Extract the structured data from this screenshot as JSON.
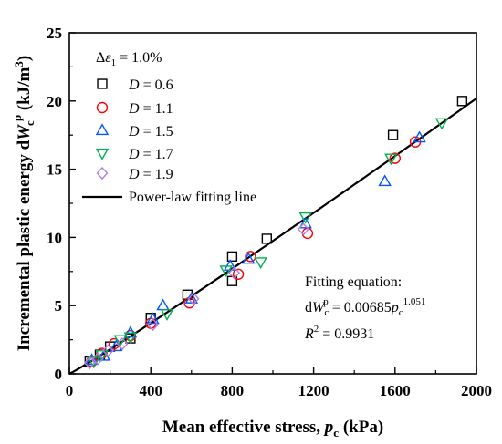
{
  "chart_data": {
    "type": "scatter",
    "title": "",
    "xlabel": "Mean effective stress, p_c (kPa)",
    "ylabel": "Incremental plastic energy dW_c^p (kJ/m^3)",
    "xlabel_parts": [
      "Mean effective stress, ",
      "p",
      "c",
      " (kPa)"
    ],
    "ylabel_parts": [
      "Incremental plastic energy d",
      "W",
      "c",
      "p",
      " (kJ/m",
      "3",
      ")"
    ],
    "xlim": [
      0,
      2000
    ],
    "ylim": [
      0,
      25
    ],
    "xticks": [
      "0",
      "400",
      "800",
      "1200",
      "1600",
      "2000"
    ],
    "yticks": [
      "0",
      "5",
      "10",
      "15",
      "20",
      "25"
    ],
    "grid": false,
    "legend": {
      "placement": "top-left",
      "header_parts": [
        "Δ",
        "ε",
        "1",
        " = 1.0%"
      ],
      "line_label": "Power-law fitting line"
    },
    "series": [
      {
        "name": "D = 0.6",
        "name_parts": [
          "D",
          " = 0.6"
        ],
        "marker": "square",
        "color": "#000000",
        "points": [
          [
            100,
            0.9
          ],
          [
            150,
            1.4
          ],
          [
            200,
            2.0
          ],
          [
            300,
            2.6
          ],
          [
            400,
            4.1
          ],
          [
            580,
            5.8
          ],
          [
            800,
            6.8
          ],
          [
            800,
            8.6
          ],
          [
            970,
            9.9
          ],
          [
            1590,
            17.5
          ],
          [
            1930,
            20.0
          ]
        ]
      },
      {
        "name": "D = 1.1",
        "name_parts": [
          "D",
          " = 1.1"
        ],
        "marker": "circle",
        "color": "#ff0000",
        "points": [
          [
            110,
            0.9
          ],
          [
            160,
            1.5
          ],
          [
            220,
            2.2
          ],
          [
            300,
            2.8
          ],
          [
            400,
            3.7
          ],
          [
            590,
            5.2
          ],
          [
            830,
            7.3
          ],
          [
            890,
            8.6
          ],
          [
            1170,
            10.3
          ],
          [
            1600,
            15.8
          ],
          [
            1700,
            17.0
          ]
        ]
      },
      {
        "name": "D = 1.5",
        "name_parts": [
          "D",
          " = 1.5"
        ],
        "marker": "triangle-up",
        "color": "#0055ff",
        "points": [
          [
            110,
            1.0
          ],
          [
            170,
            1.3
          ],
          [
            230,
            2.0
          ],
          [
            300,
            3.0
          ],
          [
            410,
            4.0
          ],
          [
            460,
            5.0
          ],
          [
            600,
            5.5
          ],
          [
            790,
            7.9
          ],
          [
            880,
            8.4
          ],
          [
            1160,
            11.0
          ],
          [
            1550,
            14.1
          ],
          [
            1720,
            17.3
          ]
        ]
      },
      {
        "name": "D = 1.7",
        "name_parts": [
          "D",
          " = 1.7"
        ],
        "marker": "triangle-down",
        "color": "#00b050",
        "points": [
          [
            120,
            0.9
          ],
          [
            160,
            1.4
          ],
          [
            250,
            2.5
          ],
          [
            300,
            2.7
          ],
          [
            480,
            4.4
          ],
          [
            770,
            7.6
          ],
          [
            940,
            8.2
          ],
          [
            1160,
            11.5
          ],
          [
            1580,
            15.8
          ],
          [
            1830,
            18.4
          ]
        ]
      },
      {
        "name": "D = 1.9",
        "name_parts": [
          "D",
          " = 1.9"
        ],
        "marker": "diamond",
        "color": "#b07ee0",
        "points": [
          [
            100,
            0.8
          ],
          [
            140,
            1.1
          ],
          [
            190,
            1.7
          ],
          [
            260,
            2.2
          ],
          [
            410,
            3.6
          ],
          [
            610,
            5.5
          ],
          [
            810,
            7.4
          ],
          [
            1150,
            10.6
          ]
        ]
      }
    ],
    "fit_line": {
      "name": "Power-law fitting line",
      "coefficient": 0.00685,
      "exponent": 1.051,
      "color": "#000000"
    },
    "annotation": {
      "title": "Fitting equation:",
      "equation_parts": [
        "d",
        "W",
        "c",
        "p",
        " = 0.00685",
        "p",
        "c",
        "1.051"
      ],
      "r2_parts": [
        "R",
        "2",
        " = 0.9931"
      ]
    }
  }
}
